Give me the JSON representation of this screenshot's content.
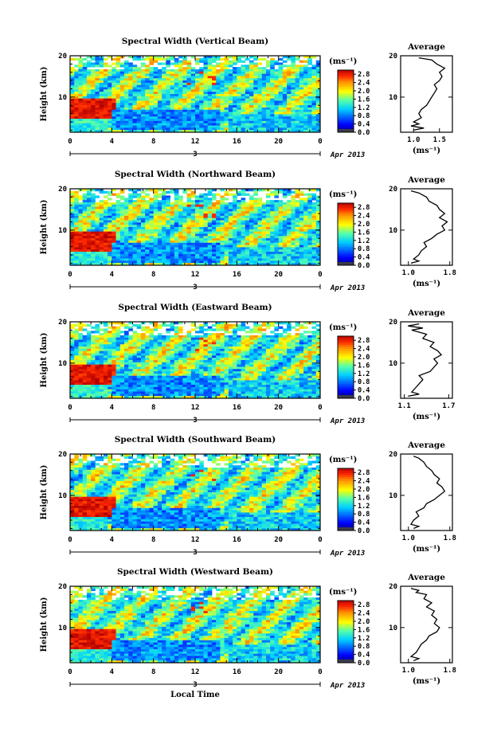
{
  "chart_data": [
    {
      "type": "heatmap",
      "title": "Spectral Width (Vertical Beam)",
      "ylabel": "Height (km)",
      "x_ticks": [
        "0",
        "4",
        "8",
        "12",
        "16",
        "20",
        "0"
      ],
      "y_ticks": [
        "10",
        "20"
      ],
      "xlim": [
        0,
        24
      ],
      "ylim": [
        1.5,
        20
      ],
      "date_day": "3",
      "date_label": "Apr 2013",
      "colorbar": {
        "unit": "(ms⁻¹)",
        "ticks": [
          "2.8",
          "2.4",
          "2.0",
          "1.6",
          "1.2",
          "0.8",
          "0.4",
          "0.0"
        ],
        "range": [
          0,
          3.0
        ]
      },
      "profile": {
        "title": "Average",
        "xlabel": "(ms⁻¹)",
        "x_ticks": [
          "1.0",
          "1.5"
        ],
        "xlim": [
          0.75,
          1.75
        ],
        "y_ticks": [
          "10",
          "20"
        ],
        "height": [
          2,
          2.5,
          3,
          3.5,
          4,
          5,
          6,
          7,
          8,
          9,
          10,
          11,
          12,
          13,
          14,
          15,
          16,
          17,
          18,
          19,
          19.5
        ],
        "width": [
          1.0,
          1.2,
          0.95,
          1.1,
          1.0,
          1.15,
          1.1,
          1.15,
          1.25,
          1.3,
          1.35,
          1.4,
          1.45,
          1.4,
          1.5,
          1.55,
          1.5,
          1.6,
          1.45,
          1.35,
          1.1
        ]
      }
    },
    {
      "type": "heatmap",
      "title": "Spectral Width (Northward Beam)",
      "ylabel": "Height (km)",
      "x_ticks": [
        "0",
        "4",
        "8",
        "12",
        "16",
        "20",
        "0"
      ],
      "y_ticks": [
        "10",
        "20"
      ],
      "xlim": [
        0,
        24
      ],
      "ylim": [
        1.5,
        20
      ],
      "date_day": "3",
      "date_label": "Apr 2013",
      "colorbar": {
        "unit": "(ms⁻¹)",
        "ticks": [
          "2.8",
          "2.4",
          "2.0",
          "1.6",
          "1.2",
          "0.8",
          "0.4",
          "0.0"
        ],
        "range": [
          0,
          3.0
        ]
      },
      "profile": {
        "title": "Average",
        "xlabel": "(ms⁻¹)",
        "x_ticks": [
          "1.0",
          "1.8"
        ],
        "xlim": [
          0.85,
          1.85
        ],
        "y_ticks": [
          "10",
          "20"
        ],
        "height": [
          2,
          2.5,
          3,
          4,
          5,
          6,
          7,
          8,
          9,
          10,
          11,
          12,
          13,
          14,
          15,
          16,
          17,
          18,
          19,
          19.5
        ],
        "width": [
          1.05,
          1.2,
          1.1,
          1.2,
          1.25,
          1.35,
          1.3,
          1.45,
          1.55,
          1.7,
          1.65,
          1.75,
          1.6,
          1.7,
          1.6,
          1.55,
          1.4,
          1.35,
          1.2,
          1.05
        ]
      }
    },
    {
      "type": "heatmap",
      "title": "Spectral Width (Eastward Beam)",
      "ylabel": "Height (km)",
      "x_ticks": [
        "0",
        "4",
        "8",
        "12",
        "16",
        "20",
        "0"
      ],
      "y_ticks": [
        "10",
        "20"
      ],
      "xlim": [
        0,
        24
      ],
      "ylim": [
        1.5,
        20
      ],
      "date_day": "3",
      "date_label": "Apr 2013",
      "colorbar": {
        "unit": "(ms⁻¹)",
        "ticks": [
          "2.8",
          "2.4",
          "2.0",
          "1.6",
          "1.2",
          "0.8",
          "0.4",
          "0.0"
        ],
        "range": [
          0,
          3.0
        ]
      },
      "profile": {
        "title": "Average",
        "xlabel": "(ms⁻¹)",
        "x_ticks": [
          "1.1",
          "1.7"
        ],
        "xlim": [
          1.05,
          1.75
        ],
        "y_ticks": [
          "10",
          "20"
        ],
        "height": [
          2,
          2.5,
          3,
          4,
          5,
          6,
          7,
          8,
          9,
          10,
          11,
          12,
          13,
          14,
          15,
          16,
          17,
          18,
          18.5,
          19,
          19.5
        ],
        "width": [
          1.15,
          1.3,
          1.2,
          1.25,
          1.3,
          1.35,
          1.3,
          1.45,
          1.5,
          1.55,
          1.5,
          1.6,
          1.55,
          1.45,
          1.5,
          1.35,
          1.4,
          1.2,
          1.35,
          1.15,
          1.3
        ]
      }
    },
    {
      "type": "heatmap",
      "title": "Spectral Width (Southward Beam)",
      "ylabel": "Height (km)",
      "x_ticks": [
        "0",
        "4",
        "8",
        "12",
        "16",
        "20",
        "0"
      ],
      "y_ticks": [
        "10",
        "20"
      ],
      "xlim": [
        0,
        24
      ],
      "ylim": [
        1.5,
        20
      ],
      "date_day": "3",
      "date_label": "Apr 2013",
      "colorbar": {
        "unit": "(ms⁻¹)",
        "ticks": [
          "2.8",
          "2.4",
          "2.0",
          "1.6",
          "1.2",
          "0.8",
          "0.4",
          "0.0"
        ],
        "range": [
          0,
          3.0
        ]
      },
      "profile": {
        "title": "Average",
        "xlabel": "(ms⁻¹)",
        "x_ticks": [
          "1.0",
          "1.8"
        ],
        "xlim": [
          0.85,
          1.85
        ],
        "y_ticks": [
          "10",
          "20"
        ],
        "height": [
          2,
          2.5,
          3,
          4,
          5,
          6,
          7,
          8,
          9,
          10,
          11,
          12,
          13,
          14,
          15,
          16,
          17,
          18,
          19,
          19.5
        ],
        "width": [
          1.1,
          1.2,
          1.05,
          1.1,
          1.2,
          1.15,
          1.3,
          1.35,
          1.5,
          1.6,
          1.7,
          1.65,
          1.55,
          1.6,
          1.5,
          1.45,
          1.35,
          1.3,
          1.2,
          1.1
        ]
      }
    },
    {
      "type": "heatmap",
      "title": "Spectral Width (Westward Beam)",
      "ylabel": "Height (km)",
      "xlabel": "Local Time",
      "x_ticks": [
        "0",
        "4",
        "8",
        "12",
        "16",
        "20",
        "0"
      ],
      "y_ticks": [
        "10",
        "20"
      ],
      "xlim": [
        0,
        24
      ],
      "ylim": [
        1.5,
        20
      ],
      "date_day": "3",
      "date_label": "Apr 2013",
      "colorbar": {
        "unit": "(ms⁻¹)",
        "ticks": [
          "2.8",
          "2.4",
          "2.0",
          "1.6",
          "1.2",
          "0.8",
          "0.4",
          "0.0"
        ],
        "range": [
          0,
          3.0
        ]
      },
      "profile": {
        "title": "Average",
        "xlabel": "(ms⁻¹)",
        "x_ticks": [
          "1.0",
          "1.8"
        ],
        "xlim": [
          0.85,
          1.85
        ],
        "y_ticks": [
          "10",
          "20"
        ],
        "height": [
          2,
          2.5,
          3,
          4,
          5,
          6,
          7,
          8,
          9,
          10,
          11,
          12,
          13,
          14,
          15,
          16,
          17,
          18,
          18.5,
          19,
          19.5
        ],
        "width": [
          1.1,
          1.2,
          1.05,
          1.15,
          1.2,
          1.25,
          1.35,
          1.4,
          1.55,
          1.6,
          1.5,
          1.55,
          1.45,
          1.5,
          1.35,
          1.45,
          1.3,
          1.35,
          1.15,
          1.2,
          1.05
        ]
      }
    }
  ]
}
